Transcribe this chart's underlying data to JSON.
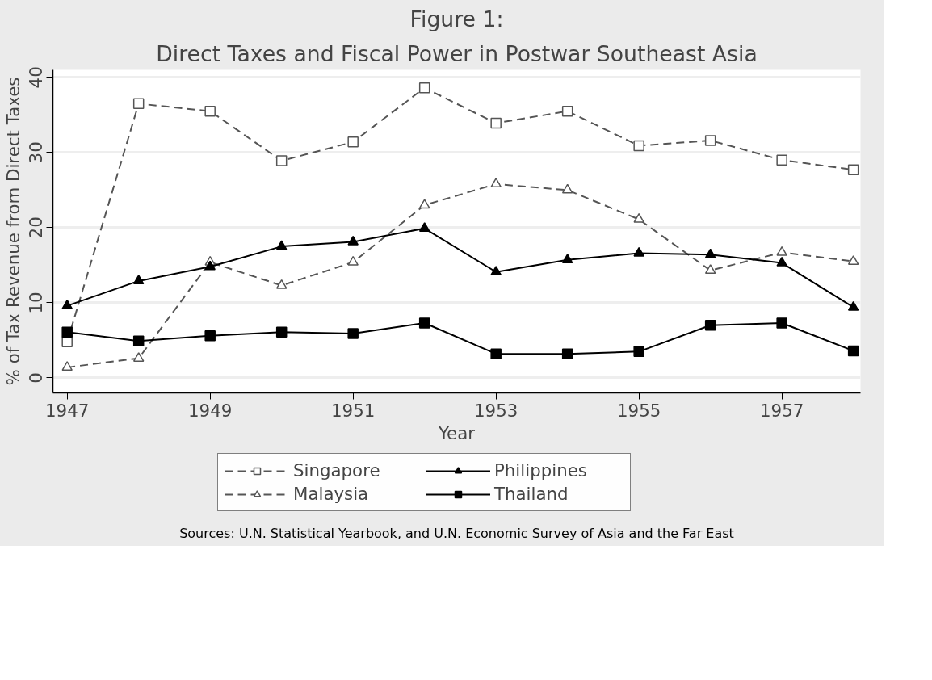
{
  "chart_data": {
    "type": "line",
    "title": "Figure 1:",
    "subtitle": "Direct Taxes and Fiscal Power in Postwar Southeast Asia",
    "xlabel": "Year",
    "ylabel": "% of Tax Revenue from Direct Taxes",
    "x": [
      1947,
      1948,
      1949,
      1950,
      1951,
      1952,
      1953,
      1954,
      1955,
      1956,
      1957,
      1958
    ],
    "series": [
      {
        "name": "Singapore",
        "color": "#555555",
        "marker": "square",
        "line_style": "dashed",
        "values": [
          4.8,
          36.5,
          35.5,
          28.9,
          31.4,
          38.6,
          33.9,
          35.5,
          30.9,
          31.6,
          29.0,
          27.7
        ]
      },
      {
        "name": "Malaysia",
        "color": "#555555",
        "marker": "triangle",
        "line_style": "dashed",
        "values": [
          1.4,
          2.6,
          15.4,
          12.3,
          15.4,
          23.0,
          25.8,
          25.0,
          21.1,
          14.3,
          16.7,
          15.5
        ]
      },
      {
        "name": "Philippines",
        "color": "#000000",
        "marker": "triangle",
        "line_style": "solid",
        "values": [
          9.6,
          12.9,
          14.8,
          17.5,
          18.1,
          19.9,
          14.1,
          15.7,
          16.6,
          16.4,
          15.3,
          9.4
        ]
      },
      {
        "name": "Thailand",
        "color": "#000000",
        "marker": "square",
        "line_style": "solid",
        "values": [
          6.1,
          4.9,
          5.6,
          6.1,
          5.9,
          7.3,
          3.2,
          3.2,
          3.5,
          7.0,
          7.3,
          3.6
        ]
      }
    ],
    "xlim": [
      1946.8,
      1958.1
    ],
    "xticks": [
      1947,
      1949,
      1951,
      1953,
      1955,
      1957
    ],
    "ylim": [
      -2,
      41
    ],
    "yticks": [
      0,
      10,
      20,
      30,
      40
    ],
    "grid": "y",
    "legend": "bottom",
    "annotations": [
      "Sources: U.N. Statistical Yearbook, and U.N. Economic Survey of Asia and the Far East"
    ]
  }
}
